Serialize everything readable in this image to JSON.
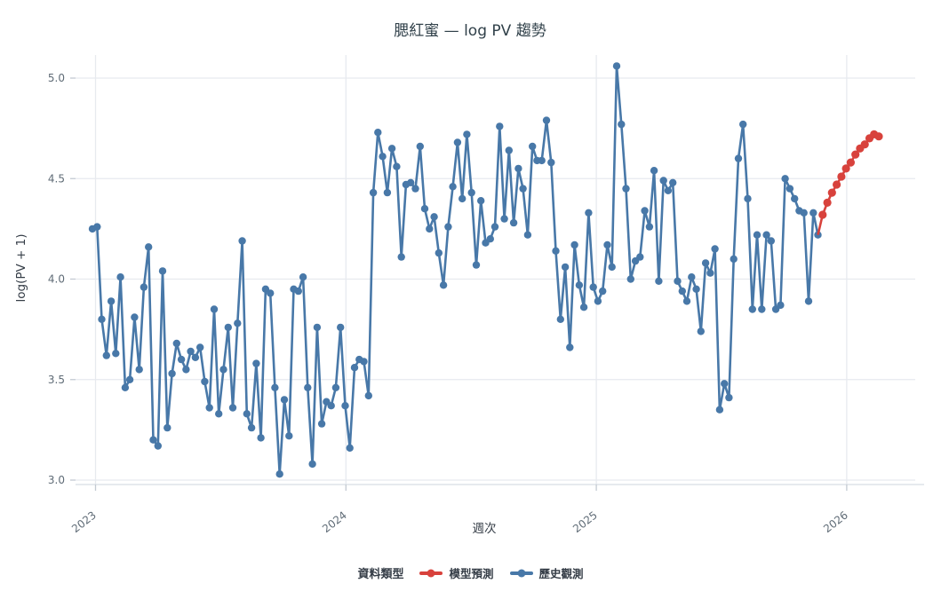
{
  "title": "腮紅蜜 — log PV 趨勢",
  "x_axis_label": "週次",
  "y_axis_label": "log(PV + 1)",
  "x_ticks": [
    "2023",
    "2024",
    "2025",
    "2026"
  ],
  "y_ticks": [
    "5.0",
    "4.5",
    "4.0",
    "3.5",
    "3.0"
  ],
  "legend": {
    "title": "資料類型",
    "items": [
      {
        "label": "模型預測",
        "color": "#d8423c"
      },
      {
        "label": "歷史觀測",
        "color": "#4878a8"
      }
    ]
  },
  "colors": {
    "history": "#4878a8",
    "forecast": "#d8423c",
    "gridline": "#e7eaef",
    "axisline": "#d8dde3"
  },
  "chart_data": {
    "type": "line",
    "title": "腮紅蜜 — log PV 趨勢",
    "xlabel": "週次",
    "ylabel": "log(PV + 1)",
    "x_unit": "week",
    "x_range_years": [
      2023,
      2026.15
    ],
    "ylim": [
      2.9,
      5.1
    ],
    "y_gridlines": [
      3.0,
      3.5,
      4.0,
      4.5,
      5.0
    ],
    "x_tick_labels": [
      "2023",
      "2024",
      "2025",
      "2026"
    ],
    "grid": true,
    "legend_position": "bottom",
    "series": [
      {
        "name": "歷史觀測",
        "role": "history",
        "color": "#4878a8",
        "values": [
          4.25,
          4.26,
          3.8,
          3.62,
          3.89,
          3.63,
          4.01,
          3.46,
          3.5,
          3.81,
          3.55,
          3.96,
          4.16,
          3.2,
          3.17,
          4.04,
          3.26,
          3.53,
          3.68,
          3.6,
          3.55,
          3.64,
          3.61,
          3.66,
          3.49,
          3.36,
          3.85,
          3.33,
          3.55,
          3.76,
          3.36,
          3.78,
          4.19,
          3.33,
          3.26,
          3.58,
          3.21,
          3.95,
          3.93,
          3.46,
          3.03,
          3.4,
          3.22,
          3.95,
          3.94,
          4.01,
          3.46,
          3.08,
          3.76,
          3.28,
          3.39,
          3.37,
          3.46,
          3.76,
          3.37,
          3.16,
          3.56,
          3.6,
          3.59,
          3.42,
          4.43,
          4.73,
          4.61,
          4.43,
          4.65,
          4.56,
          4.11,
          4.47,
          4.48,
          4.45,
          4.66,
          4.35,
          4.25,
          4.31,
          4.13,
          3.97,
          4.26,
          4.46,
          4.68,
          4.4,
          4.72,
          4.43,
          4.07,
          4.39,
          4.18,
          4.2,
          4.26,
          4.76,
          4.3,
          4.64,
          4.28,
          4.55,
          4.45,
          4.22,
          4.66,
          4.59,
          4.59,
          4.79,
          4.58,
          4.14,
          3.8,
          4.06,
          3.66,
          4.17,
          3.97,
          3.86,
          4.33,
          3.96,
          3.89,
          3.94,
          4.17,
          4.06,
          5.06,
          4.77,
          4.45,
          4.0,
          4.09,
          4.11,
          4.34,
          4.26,
          4.54,
          3.99,
          4.49,
          4.44,
          4.48,
          3.99,
          3.94,
          3.89,
          4.01,
          3.95,
          3.74,
          4.08,
          4.03,
          4.15,
          3.35,
          3.48,
          3.41,
          4.1,
          4.6,
          4.77,
          4.4,
          3.85,
          4.22,
          3.85,
          4.22,
          4.19,
          3.85,
          3.87,
          4.5,
          4.45,
          4.4,
          4.34,
          4.33,
          3.89,
          4.33,
          4.22
        ]
      },
      {
        "name": "模型預測",
        "role": "forecast",
        "color": "#d8423c",
        "values": [
          4.32,
          4.38,
          4.43,
          4.47,
          4.51,
          4.55,
          4.58,
          4.62,
          4.65,
          4.67,
          4.7,
          4.72,
          4.71
        ]
      }
    ]
  }
}
